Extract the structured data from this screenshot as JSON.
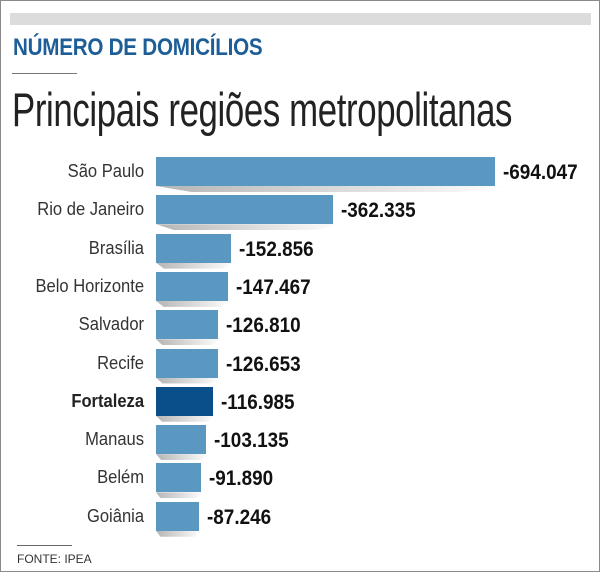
{
  "kicker": "NÚMERO DE DOMICÍLIOS",
  "source": "FONTE: IPEA",
  "colors": {
    "bar": "#5b98c1",
    "highlight": "#0b4f8a",
    "kicker": "#1d5e98"
  },
  "chart_data": {
    "type": "bar",
    "orientation": "horizontal",
    "title": "Principais regiões metropolitanas",
    "categories": [
      "São Paulo",
      "Rio de Janeiro",
      "Brasília",
      "Belo Horizonte",
      "Salvador",
      "Recife",
      "Fortaleza",
      "Manaus",
      "Belém",
      "Goiânia"
    ],
    "values": [
      -694047,
      -362335,
      -152856,
      -147467,
      -126810,
      -126653,
      -116985,
      -103135,
      -91890,
      -87246
    ],
    "labels": [
      "-694.047",
      "-362.335",
      "-152.856",
      "-147.467",
      "-126.810",
      "-126.653",
      "-116.985",
      "-103.135",
      "-91.890",
      "-87.246"
    ],
    "highlight": "Fortaleza",
    "xlabel": "",
    "ylabel": "",
    "grid": false
  }
}
